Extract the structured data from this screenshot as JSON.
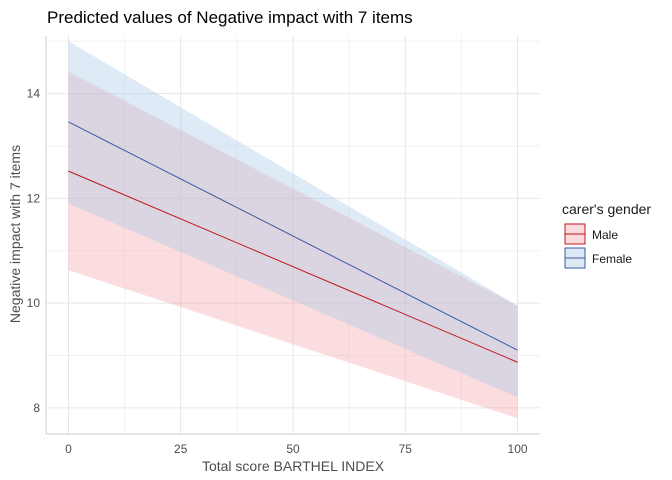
{
  "chart_data": {
    "type": "line",
    "title": "Predicted values of Negative impact with 7 items",
    "xlabel": "Total score BARTHEL INDEX",
    "ylabel": "Negative impact with 7 items",
    "xlim": [
      -5,
      105
    ],
    "ylim": [
      7.5,
      15.1
    ],
    "x_ticks": [
      0,
      25,
      50,
      75,
      100
    ],
    "y_ticks": [
      8,
      10,
      12,
      14
    ],
    "x_minor": [
      12.5,
      37.5,
      62.5,
      87.5
    ],
    "y_minor": [
      9,
      11,
      13,
      15
    ],
    "grid": true,
    "legend": {
      "title": "carer's gender",
      "position": "right"
    },
    "series": [
      {
        "name": "Male",
        "line_color": "#c0161d",
        "band_color": "#f4a5aa",
        "x": [
          0,
          100
        ],
        "y": [
          12.52,
          8.87
        ],
        "lower": [
          10.63,
          7.8
        ],
        "upper": [
          14.42,
          9.95
        ]
      },
      {
        "name": "Female",
        "line_color": "#3a5ba0",
        "band_color": "#a9c8e6",
        "x": [
          0,
          100
        ],
        "y": [
          13.46,
          9.1
        ],
        "lower": [
          11.9,
          8.2
        ],
        "upper": [
          15.0,
          9.95
        ]
      }
    ]
  }
}
